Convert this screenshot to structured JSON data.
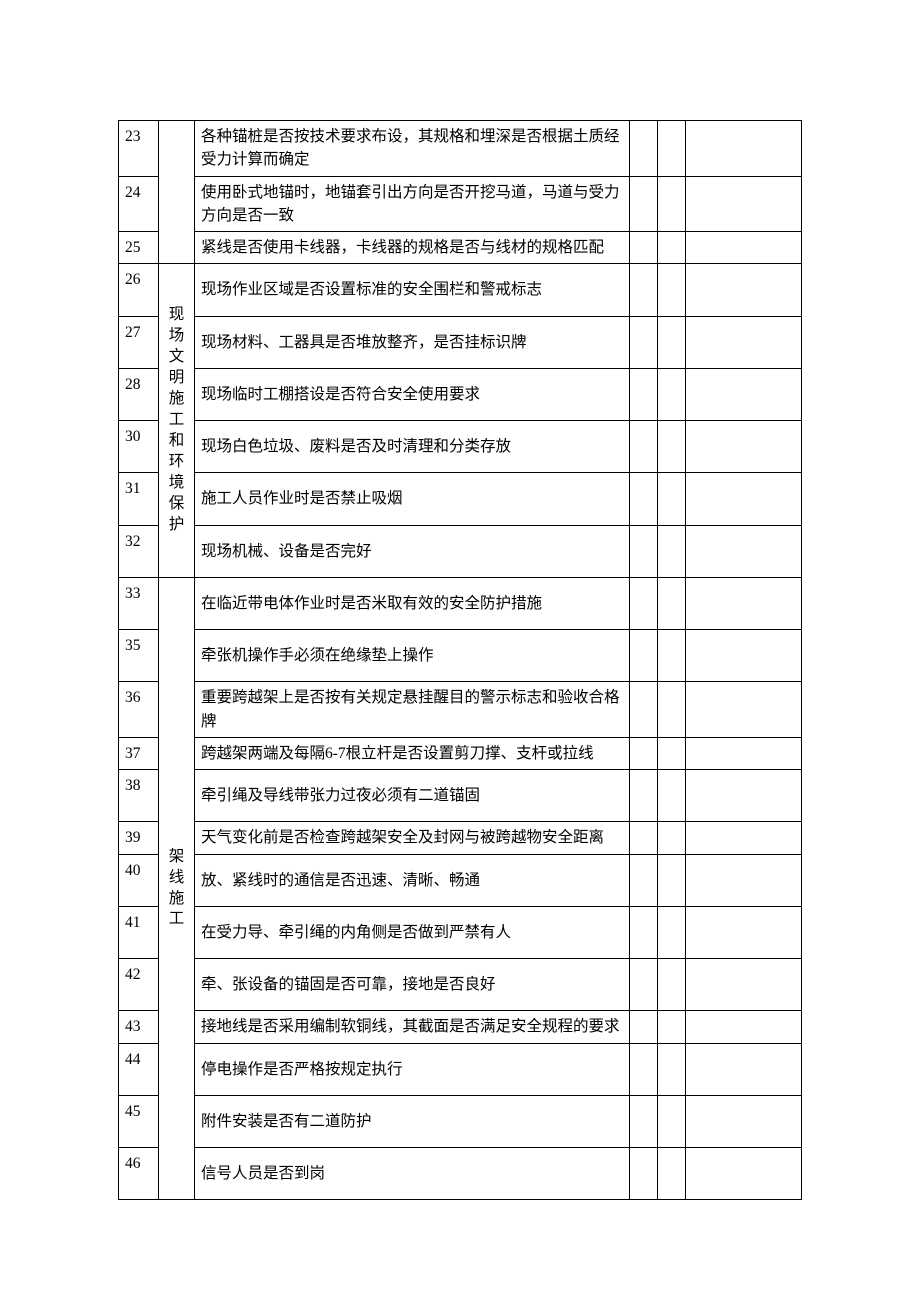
{
  "table": {
    "groups": [
      {
        "category": "",
        "rowspan": 3,
        "rows": [
          {
            "num": "23",
            "desc": "各种锚桩是否按技术要求布设，其规格和埋深是否根据土质经受力计算而确定",
            "pad": false
          },
          {
            "num": "24",
            "desc": "使用卧式地锚时，地锚套引出方向是否开挖马道，马道与受力方向是否一致",
            "pad": false
          },
          {
            "num": "25",
            "desc": "紧线是否使用卡线器，卡线器的规格是否与线材的规格匹配",
            "pad": false
          }
        ]
      },
      {
        "category": "现场文明施工和环境保护",
        "rowspan": 6,
        "rows": [
          {
            "num": "26",
            "desc": "现场作业区域是否设置标准的安全围栏和警戒标志",
            "pad": true
          },
          {
            "num": "27",
            "desc": "现场材料、工器具是否堆放整齐，是否挂标识牌",
            "pad": true
          },
          {
            "num": "28",
            "desc": "现场临时工棚搭设是否符合安全使用要求",
            "pad": true
          },
          {
            "num": "30",
            "desc": "现场白色垃圾、废料是否及时清理和分类存放",
            "pad": true
          },
          {
            "num": "31",
            "desc": "施工人员作业时是否禁止吸烟",
            "pad": true
          },
          {
            "num": "32",
            "desc": "现场机械、设备是否完好",
            "pad": true
          }
        ]
      },
      {
        "category": "架线施工",
        "rowspan": 13,
        "rows": [
          {
            "num": "33",
            "desc": "在临近带电体作业时是否米取有效的安全防护措施",
            "pad": true
          },
          {
            "num": "35",
            "desc": "牵张机操作手必须在绝缘垫上操作",
            "pad": true
          },
          {
            "num": "36",
            "desc": "重要跨越架上是否按有关规定悬挂醒目的警示标志和验收合格牌",
            "pad": false
          },
          {
            "num": "37",
            "desc": "跨越架两端及每隔6-7根立杆是否设置剪刀撑、支杆或拉线",
            "pad": false
          },
          {
            "num": "38",
            "desc": "牵引绳及导线带张力过夜必须有二道锚固",
            "pad": true
          },
          {
            "num": "39",
            "desc": "天气变化前是否检查跨越架安全及封网与被跨越物安全距离",
            "pad": false
          },
          {
            "num": "40",
            "desc": "放、紧线时的通信是否迅速、清晰、畅通",
            "pad": true
          },
          {
            "num": "41",
            "desc": "在受力导、牵引绳的内角侧是否做到严禁有人",
            "pad": true
          },
          {
            "num": "42",
            "desc": "牵、张设备的锚固是否可靠，接地是否良好",
            "pad": true
          },
          {
            "num": "43",
            "desc": "接地线是否采用编制软铜线，其截面是否满足安全规程的要求",
            "pad": false
          },
          {
            "num": "44",
            "desc": "停电操作是否严格按规定执行",
            "pad": true
          },
          {
            "num": "45",
            "desc": "附件安装是否有二道防护",
            "pad": true
          },
          {
            "num": "46",
            "desc": "信号人员是否到岗",
            "pad": true
          }
        ]
      }
    ]
  }
}
